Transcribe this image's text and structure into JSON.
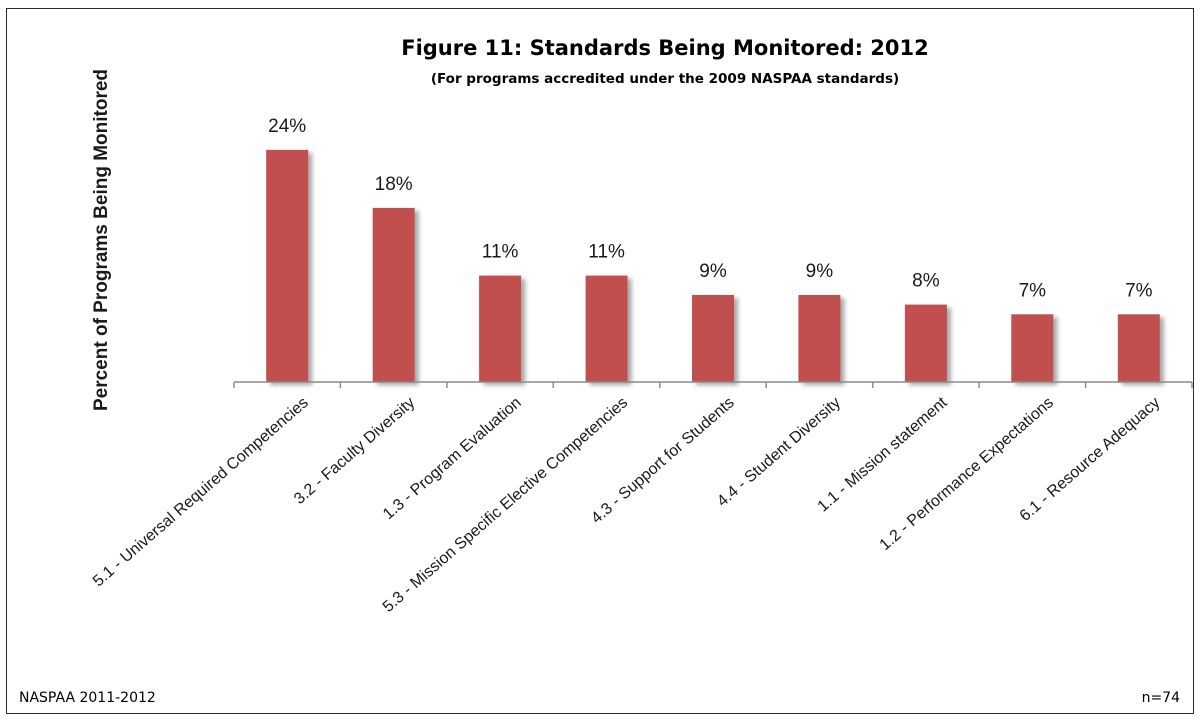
{
  "chart_data": {
    "type": "bar",
    "title": "Figure 11: Standards Being Monitored: 2012",
    "subtitle": "(For programs accredited under the 2009 NASPAA standards)",
    "ylabel": "Percent of Programs Being Monitored",
    "xlabel": "",
    "categories": [
      "5.1 - Universal Required Competencies",
      "3.2 - Faculty Diversity",
      "1.3 - Program Evaluation",
      "5.3 - Mission Specific Elective Competencies",
      "4.3 - Support for Students",
      "4.4 - Student Diversity",
      "1.1 - Mission statement",
      "1.2 - Performance Expectations",
      "6.1 - Resource Adequacy"
    ],
    "values": [
      24,
      18,
      11,
      11,
      9,
      9,
      8,
      7,
      7
    ],
    "data_labels": [
      "24%",
      "18%",
      "11%",
      "11%",
      "9%",
      "9%",
      "8%",
      "7%",
      "7%"
    ],
    "ylim": [
      0,
      26
    ],
    "grid": false,
    "legend": "none",
    "bar_color": "#c0504d",
    "footnote_left": "NASPAA 2011-2012",
    "footnote_right": "n=74"
  }
}
